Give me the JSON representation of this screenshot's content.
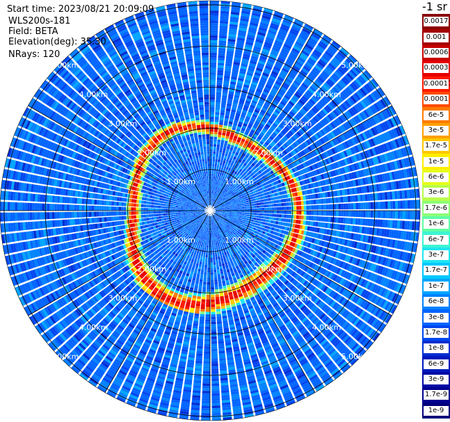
{
  "header": {
    "start_time": "Start time: 2023/08/21 20:09:09",
    "instrument": "WLS200s-181",
    "field": "Field: BETA",
    "elevation": "Elevation(deg): 35.30",
    "nrays": "NRays: 120"
  },
  "colorbar": {
    "unit": "-1 sr",
    "labels": [
      "0.0017",
      "0.001",
      "0.0006",
      "0.0003",
      "0.00017",
      "0.0001",
      "6e-5",
      "3e-5",
      "1.7e-5",
      "1e-5",
      "6e-6",
      "3e-6",
      "1.7e-6",
      "1e-6",
      "6e-7",
      "3e-7",
      "1.7e-7",
      "1e-7",
      "6e-8",
      "3e-8",
      "1.7e-8",
      "1e-8",
      "6e-9",
      "3e-9",
      "1.7e-9",
      "1e-9"
    ],
    "colors": [
      "#8b0000",
      "#a50000",
      "#c80000",
      "#e60000",
      "#ff1a00",
      "#ff4a00",
      "#ff7a00",
      "#ffa000",
      "#ffc800",
      "#ffee00",
      "#e6ff1a",
      "#b9ff4a",
      "#8cff78",
      "#5fffa5",
      "#3cf5d2",
      "#1ee6f0",
      "#00c8ff",
      "#00a5ff",
      "#0082ff",
      "#0064ff",
      "#0046f0",
      "#002dd2",
      "#0019be",
      "#0008a5",
      "#000090",
      "#00007a"
    ]
  },
  "chart_data": {
    "type": "heatmap",
    "subtype": "polar-ppi",
    "field": "BETA",
    "elevation_deg": 35.3,
    "n_rays": 120,
    "range_unit": "km",
    "range_rings_km": [
      1.0,
      2.0,
      3.0,
      4.0,
      5.0
    ],
    "ring_labels": [
      "1.00km",
      "2.00km",
      "3.00km",
      "4.00km",
      "5.00km"
    ],
    "max_range_km": 5.1,
    "color_scale": "log",
    "value_range": [
      1e-09,
      0.0017
    ],
    "background_level": "3e-8",
    "enhanced_band": {
      "range_km": [
        1.6,
        2.5
      ],
      "peak_value": "0.0003",
      "description_visible": "red/orange ring of high backscatter"
    }
  }
}
